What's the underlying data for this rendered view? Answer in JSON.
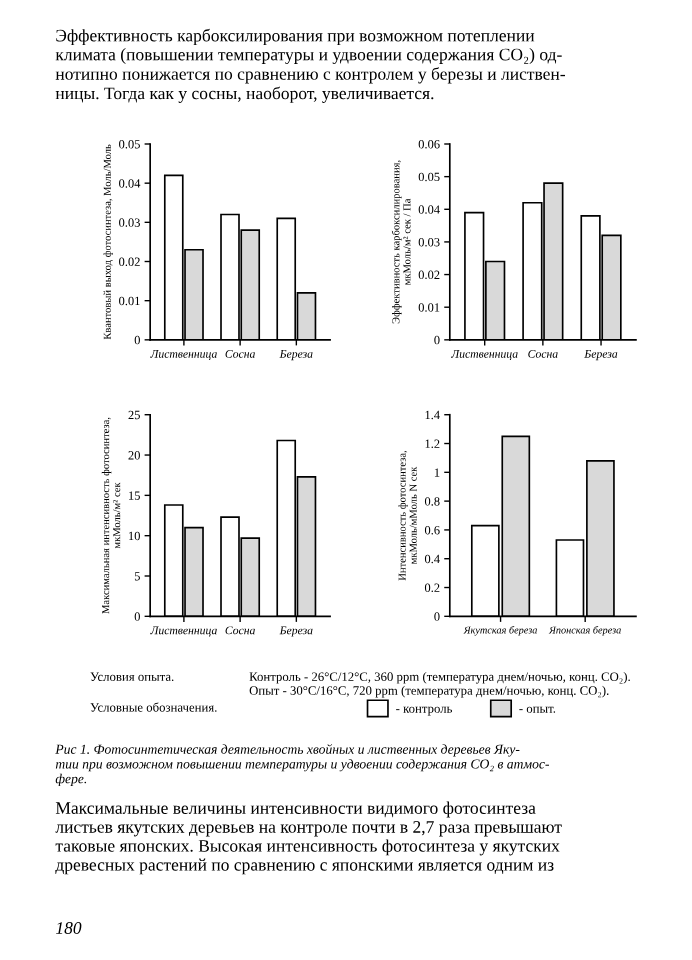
{
  "chart_data": [
    {
      "type": "bar",
      "ylabel": "Квантовый выход фотосинтеза, Моль/Моль",
      "categories": [
        "Лиственница",
        "Сосна",
        "Береза"
      ],
      "series": [
        {
          "color": "#ffffff",
          "values": [
            0.042,
            0.032,
            0.031
          ]
        },
        {
          "color": "#d9d9d9",
          "values": [
            0.023,
            0.028,
            0.012
          ]
        }
      ],
      "ylim": [
        0,
        0.05
      ],
      "yticks": [
        0,
        0.01,
        0.02,
        0.03,
        0.04,
        0.05
      ],
      "grid": false,
      "annotations": [
        "Эффективность карбоксилирования при возможном потеплении\nклимата (повышении температуры и удвоении содержания CO₂) од-\nнотипно понижается по сравнению с контролем у березы и листвен-\nницы. Тогда как у сосны, наоборот, увеличивается."
      ]
    },
    {
      "type": "bar",
      "ylabel": "Эффективность карбоксилирования,\nмкМоль/м² сек / Па",
      "categories": [
        "Лиственница",
        "Сосна",
        "Береза"
      ],
      "series": [
        {
          "color": "#ffffff",
          "values": [
            0.039,
            0.042,
            0.038
          ]
        },
        {
          "color": "#d9d9d9",
          "values": [
            0.024,
            0.048,
            0.032
          ]
        }
      ],
      "ylim": [
        0,
        0.06
      ],
      "yticks": [
        0,
        0.01,
        0.02,
        0.03,
        0.04,
        0.05,
        0.06
      ],
      "grid": false
    },
    {
      "type": "bar",
      "ylabel": "Максимальная интенсивность фотосинтеза,\nмкМоль/м² сек",
      "categories": [
        "Лиственница",
        "Сосна",
        "Береза"
      ],
      "series": [
        {
          "color": "#ffffff",
          "values": [
            13.8,
            12.3,
            21.8
          ]
        },
        {
          "color": "#d9d9d9",
          "values": [
            11,
            9.7,
            17.3
          ]
        }
      ],
      "ylim": [
        0,
        25
      ],
      "yticks": [
        0,
        5,
        10,
        15,
        20,
        25
      ],
      "grid": false
    },
    {
      "type": "bar",
      "ylabel": "Интенсивность фотосинтеза,\nмкМоль/мМоль N сек",
      "categories": [
        "Якутская береза",
        "Японская береза"
      ],
      "series": [
        {
          "name": "- контроль",
          "color": "#ffffff",
          "values": [
            0.63,
            0.53
          ]
        },
        {
          "name": "- опыт.",
          "color": "#d9d9d9",
          "values": [
            1.25,
            1.08
          ]
        }
      ],
      "ylim": [
        0,
        1.4
      ],
      "yticks": [
        0,
        0.2,
        0.4,
        0.6,
        0.8,
        {
          "value": 1,
          "label": "1"
        },
        1.2,
        1.4
      ],
      "grid": false,
      "legend": "bottom",
      "legend_title": "Условные обозначения.",
      "annotations": [
        "Условия опыта.",
        "Контроль - 26°C/12°C, 360 ppm (температура днем/ночью, конц. CO₂).\nОпыт - 30°C/16°C, 720 ppm (температура днем/ночью, конц. CO₂).",
        "Рис 1. Фотосинтетическая деятельность хвойных и лиственных деревьев Яку-\nтии при возможном повышении температуры и удвоении содержания CO₂ в атмос-\nфере.",
        "Максимальные величины интенсивности видимого фотосинтеза\nлистьев якутских деревьев на контроле почти в 2,7 раза превышают\nтаковые японских. Высокая интенсивность фотосинтеза у якутских\nдревесных растений по сравнению с японскими является одним из",
        "180"
      ]
    }
  ]
}
